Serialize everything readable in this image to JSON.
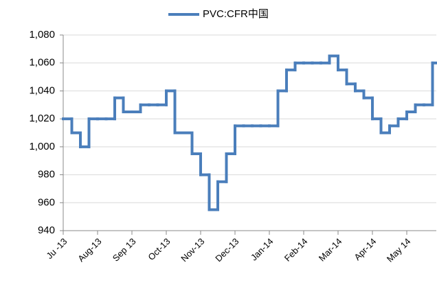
{
  "chart_data": {
    "type": "line",
    "step": "post",
    "categories": [
      "Ju -13",
      null,
      null,
      null,
      "Aug-13",
      null,
      null,
      null,
      "Sep 13",
      null,
      null,
      null,
      "Oct-13",
      null,
      null,
      null,
      "Nov-13",
      null,
      null,
      null,
      "Dec-13",
      null,
      null,
      null,
      "Jan-14",
      null,
      null,
      null,
      "Feb-14",
      null,
      null,
      null,
      "Mar-14",
      null,
      null,
      null,
      "Apr-14",
      null,
      null,
      null,
      "May 14",
      null,
      null,
      null
    ],
    "series": [
      {
        "name": "PVC:CFR中国",
        "color": "#4a7ebb",
        "values": [
          1020,
          1010,
          1000,
          1020,
          1020,
          1020,
          1035,
          1025,
          1025,
          1030,
          1030,
          1030,
          1040,
          1010,
          1010,
          995,
          980,
          955,
          975,
          995,
          1015,
          1015,
          1015,
          1015,
          1015,
          1040,
          1055,
          1060,
          1060,
          1060,
          1060,
          1065,
          1055,
          1045,
          1040,
          1035,
          1020,
          1010,
          1015,
          1020,
          1025,
          1030,
          1030,
          1060
        ]
      }
    ],
    "ylim": [
      940,
      1080
    ],
    "yticks": [
      940,
      960,
      980,
      {
        "value": 1000,
        "label": "1,000"
      },
      {
        "value": 1020,
        "label": "1,020"
      },
      {
        "value": 1040,
        "label": "1,040"
      },
      {
        "value": 1060,
        "label": "1,060"
      },
      {
        "value": 1080,
        "label": "1,080"
      }
    ],
    "grid": true,
    "legend": "top"
  }
}
